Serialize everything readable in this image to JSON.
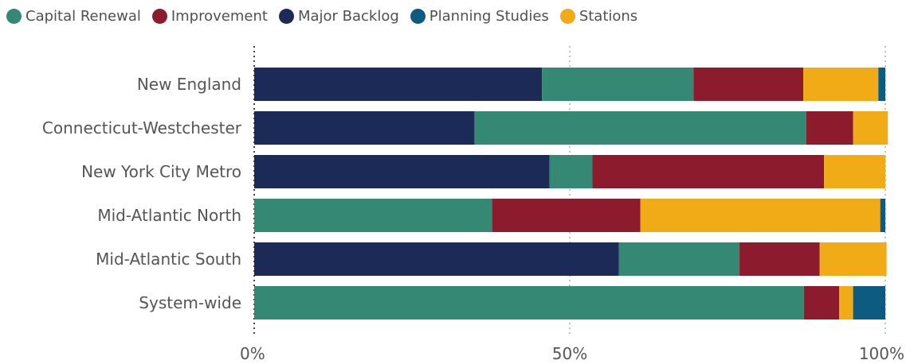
{
  "chart_data": {
    "type": "bar",
    "orientation": "horizontal",
    "stacked": true,
    "normalized": true,
    "categories": [
      "New England",
      "Connecticut-Westchester",
      "New York City Metro",
      "Mid-Atlantic North",
      "Mid-Atlantic South",
      "System-wide"
    ],
    "series": [
      {
        "name": "Major Backlog",
        "color": "#1b2a57",
        "values": [
          45.6,
          34.9,
          46.8,
          0,
          57.8,
          0
        ]
      },
      {
        "name": "Capital Renewal",
        "color": "#358873",
        "values": [
          24.0,
          52.6,
          6.8,
          37.7,
          19.1,
          87.1
        ]
      },
      {
        "name": "Improvement",
        "color": "#8c1c2d",
        "values": [
          17.4,
          7.4,
          36.7,
          23.5,
          12.7,
          5.6
        ]
      },
      {
        "name": "Stations",
        "color": "#f0ab16",
        "values": [
          11.9,
          5.5,
          9.7,
          38.0,
          10.6,
          2.2
        ]
      },
      {
        "name": "Planning Studies",
        "color": "#0d5b80",
        "values": [
          1.1,
          0,
          0,
          0.8,
          0,
          5.1
        ]
      }
    ],
    "legend_order": [
      "Capital Renewal",
      "Improvement",
      "Major Backlog",
      "Planning Studies",
      "Stations"
    ],
    "xlim": [
      0,
      100
    ],
    "x_ticks": [
      0,
      50,
      100
    ],
    "x_tick_labels": [
      "0%",
      "50%",
      "100%"
    ],
    "gridlines": "vertical dotted",
    "legend_position": "top-left",
    "title": "",
    "xlabel": "",
    "ylabel": ""
  }
}
